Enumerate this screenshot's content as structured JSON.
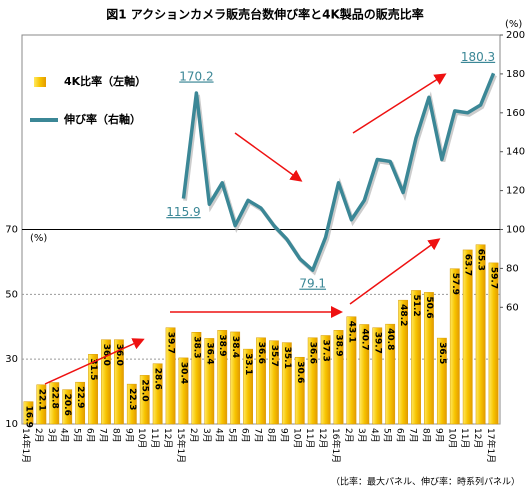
{
  "chart_data": {
    "type": "bar_line",
    "title": "図1 アクションカメラ販売台数伸び率と4K製品の販売比率",
    "footnote": "（比率：最大パネル、伸び率：時系列パネル）",
    "y_label": "(%)",
    "y2_label": "(%)",
    "categories": [
      "14年1月",
      "2月",
      "3月",
      "4月",
      "5月",
      "6月",
      "7月",
      "8月",
      "9月",
      "10月",
      "11月",
      "12月",
      "15年1月",
      "2月",
      "3月",
      "4月",
      "5月",
      "6月",
      "7月",
      "8月",
      "9月",
      "10月",
      "11月",
      "12月",
      "16年1月",
      "2月",
      "3月",
      "4月",
      "5月",
      "6月",
      "7月",
      "8月",
      "9月",
      "10月",
      "11月",
      "12月",
      "17年1月"
    ],
    "series": [
      {
        "name": "4K比率（左軸）",
        "type": "bar",
        "color": "#f5b800",
        "values": [
          16.9,
          22.1,
          22.8,
          20.6,
          22.9,
          31.5,
          36.0,
          36.0,
          22.3,
          25.0,
          28.6,
          39.7,
          30.4,
          38.3,
          36.4,
          38.9,
          38.4,
          33.1,
          36.6,
          35.7,
          35.1,
          30.6,
          36.6,
          37.3,
          38.9,
          43.1,
          40.7,
          39.7,
          40.8,
          48.2,
          51.2,
          50.6,
          36.5,
          57.9,
          63.7,
          65.3,
          59.7
        ],
        "value_labels": [
          "16.9",
          "22.1",
          "22.8",
          "20.6",
          "22.9",
          "31.5",
          "36.0",
          "36.0",
          "22.3",
          "25.0",
          "28.6",
          "39.7",
          "30.4",
          "38.3",
          "36.4",
          "38.9",
          "38.4",
          "33.1",
          "36.6",
          "35.7",
          "35.1",
          "30.6",
          "36.6",
          "37.3",
          "38.9",
          "43.1",
          "40.7",
          "39.7",
          "40.8",
          "48.2",
          "51.2",
          "50.6",
          "36.5",
          "57.9",
          "63.7",
          "65.3",
          "59.7"
        ]
      },
      {
        "name": "伸び率（右軸）",
        "type": "line",
        "axis": "y2",
        "color": "#3b8796",
        "values": [
          null,
          null,
          null,
          null,
          null,
          null,
          null,
          null,
          null,
          null,
          null,
          null,
          115.9,
          170.2,
          113,
          124,
          102,
          115,
          111,
          102,
          95,
          85,
          79.1,
          96,
          124,
          105,
          115,
          136,
          135,
          119,
          147,
          168,
          136,
          161,
          160,
          164,
          180.3
        ],
        "value_labels": [
          null,
          null,
          null,
          null,
          null,
          null,
          null,
          null,
          null,
          null,
          null,
          null,
          "115.9",
          "170.2",
          null,
          null,
          null,
          null,
          null,
          null,
          null,
          null,
          "79.1",
          null,
          null,
          null,
          null,
          null,
          null,
          null,
          null,
          null,
          null,
          null,
          null,
          null,
          "180.3"
        ]
      }
    ],
    "ylim": [
      10,
      130
    ],
    "yticks": [
      10,
      30,
      50,
      70
    ],
    "y2lim": [
      0,
      200
    ],
    "y2ticks": [
      60,
      80,
      100,
      120,
      140,
      160,
      180,
      200
    ],
    "grid": true,
    "legend": "upper left"
  }
}
